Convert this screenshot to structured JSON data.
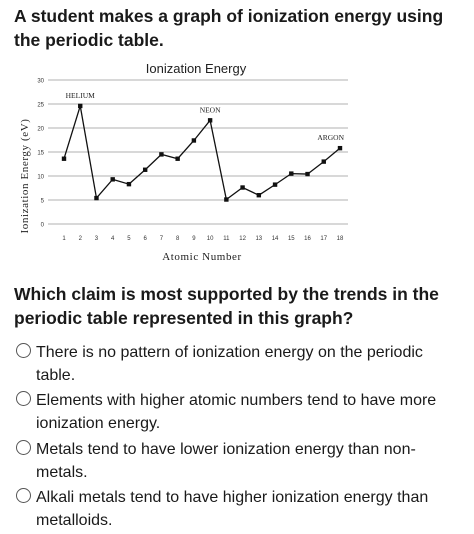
{
  "prompt": "A student makes a graph of ionization energy using the periodic table.",
  "question": "Which claim is most supported by the trends in the periodic table represented in this graph?",
  "options": [
    "There is no pattern of ionization energy on the periodic table.",
    "Elements with higher atomic numbers tend to have more ionization energy.",
    "Metals tend to have lower ionization energy than non-metals.",
    "Alkali metals tend to have higher ionization energy than metalloids."
  ],
  "chart_data": {
    "type": "line",
    "title": "Ionization Energy",
    "xlabel": "Atomic Number",
    "ylabel": "Ionization Energy (eV)",
    "xlim": [
      1,
      18
    ],
    "ylim": [
      0,
      30
    ],
    "yticks": [
      0,
      5,
      10,
      15,
      20,
      25,
      30
    ],
    "xticks": [
      1,
      2,
      3,
      4,
      5,
      6,
      7,
      8,
      9,
      10,
      11,
      12,
      13,
      14,
      15,
      16,
      17,
      18
    ],
    "x": [
      1,
      2,
      3,
      4,
      5,
      6,
      7,
      8,
      9,
      10,
      11,
      12,
      13,
      14,
      15,
      16,
      17,
      18
    ],
    "y": [
      13.6,
      24.6,
      5.4,
      9.3,
      8.3,
      11.3,
      14.5,
      13.6,
      17.4,
      21.6,
      5.1,
      7.6,
      6.0,
      8.2,
      10.5,
      10.4,
      13.0,
      15.8
    ],
    "annotations": [
      {
        "text": "Helium",
        "x": 2
      },
      {
        "text": "Neon",
        "x": 10
      },
      {
        "text": "Argon",
        "x": 18
      }
    ],
    "grid": true,
    "colors": {
      "line": "#111111",
      "grid": "#999999"
    }
  }
}
